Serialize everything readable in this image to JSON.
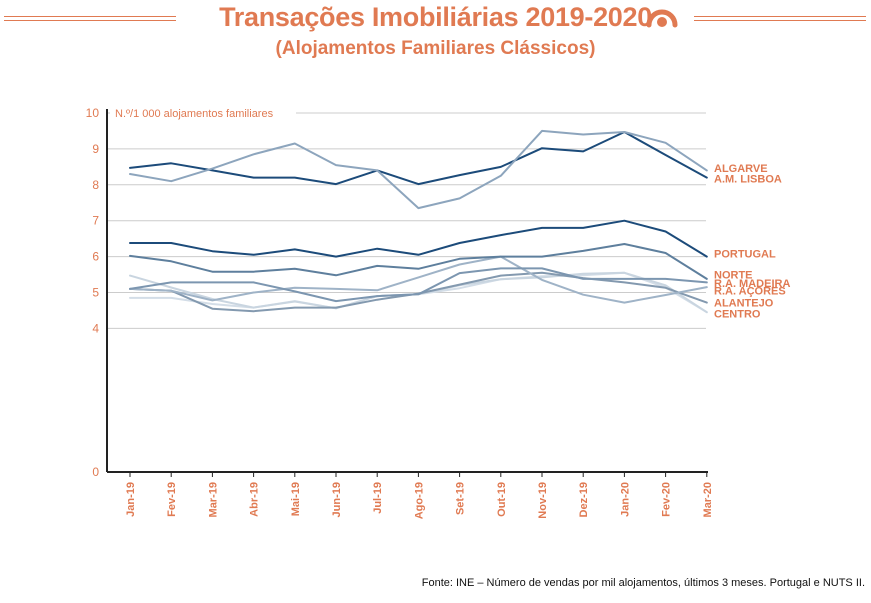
{
  "header": {
    "title": "Transações Imobiliárias 2019-2020",
    "subtitle": "(Alojamentos Familiares Clássicos)",
    "logo_icon": "ine-logo-icon"
  },
  "source_note": "Fonte: INE – Número de vendas por mil alojamentos, últimos 3 meses. Portugal e NUTS II.",
  "colors": {
    "accent": "#e07a52",
    "axis": "#222222",
    "grid": "#cccccc"
  },
  "chart_data": {
    "type": "line",
    "ylabel": "N.º/1 000 alojamentos familiares",
    "ylim": [
      0,
      10
    ],
    "yticks": [
      "0",
      "4",
      "5",
      "6",
      "7",
      "8",
      "9",
      "10"
    ],
    "categories": [
      "Jan-19",
      "Fev-19",
      "Mar-19",
      "Abr-19",
      "Mai-19",
      "Jun-19",
      "Jul-19",
      "Ago-19",
      "Set-19",
      "Out-19",
      "Nov-19",
      "Dez-19",
      "Jan-20",
      "Fev-20",
      "Mar-20"
    ],
    "grid": true,
    "legend": "direct-labels-right",
    "series": [
      {
        "name": "ALGARVE",
        "color": "#8da5bd",
        "width": 2,
        "values": [
          8.3,
          8.1,
          8.45,
          8.85,
          9.15,
          8.55,
          8.4,
          7.35,
          7.62,
          8.25,
          9.5,
          9.4,
          9.47,
          9.17,
          8.4
        ]
      },
      {
        "name": "A.M. LISBOA",
        "color": "#1c4b7a",
        "width": 2,
        "values": [
          8.47,
          8.6,
          8.4,
          8.2,
          8.2,
          8.02,
          8.4,
          8.02,
          8.27,
          8.5,
          9.02,
          8.93,
          9.47,
          8.83,
          8.2
        ]
      },
      {
        "name": "PORTUGAL",
        "color": "#1c4b7a",
        "width": 2,
        "values": [
          6.38,
          6.38,
          6.15,
          6.05,
          6.2,
          6.0,
          6.22,
          6.05,
          6.38,
          6.6,
          6.8,
          6.8,
          7.0,
          6.7,
          6.0
        ]
      },
      {
        "name": "NORTE",
        "color": "#5e7f9d",
        "width": 2,
        "values": [
          6.02,
          5.87,
          5.58,
          5.58,
          5.66,
          5.48,
          5.74,
          5.66,
          5.94,
          6.0,
          6.0,
          6.16,
          6.35,
          6.1,
          5.38
        ]
      },
      {
        "name": "R.A. MADEIRA",
        "color": "#7c96b0",
        "width": 2,
        "values": [
          5.1,
          5.28,
          5.28,
          5.28,
          5.03,
          4.76,
          4.9,
          4.95,
          5.54,
          5.67,
          5.67,
          5.38,
          5.38,
          5.38,
          5.28
        ]
      },
      {
        "name": "R.A. AÇORES",
        "color": "#9fb3c7",
        "width": 2,
        "values": [
          5.1,
          5.05,
          4.78,
          5.0,
          5.13,
          5.1,
          5.06,
          5.42,
          5.78,
          6.0,
          5.35,
          4.94,
          4.72,
          4.93,
          5.15
        ]
      },
      {
        "name": "ALANTEJO",
        "color": "#8399af",
        "width": 2,
        "values": [
          5.1,
          5.05,
          4.55,
          4.48,
          4.58,
          4.58,
          4.8,
          4.97,
          5.22,
          5.47,
          5.55,
          5.4,
          5.28,
          5.13,
          4.72
        ]
      },
      {
        "name": "CENTRO",
        "color": "#c9d5e0",
        "width": 2,
        "values": [
          5.47,
          5.14,
          4.82,
          4.58,
          4.75,
          4.56,
          4.9,
          4.95,
          5.2,
          5.37,
          5.42,
          5.52,
          5.55,
          5.2,
          4.45
        ]
      },
      {
        "name": "",
        "color": "#d3dde7",
        "width": 2,
        "values": [
          4.85,
          4.85,
          4.68,
          4.58,
          4.76,
          4.56,
          4.9,
          4.95,
          5.12,
          5.37,
          5.45,
          5.48,
          5.55,
          5.14,
          4.45
        ]
      }
    ],
    "labels": [
      {
        "text": "ALGARVE",
        "value": 8.47
      },
      {
        "text": "A.M. LISBOA",
        "value": 8.18
      },
      {
        "text": "PORTUGAL",
        "value": 6.08
      },
      {
        "text": "NORTE",
        "value": 5.5
      },
      {
        "text": "R.A. MADEIRA",
        "value": 5.27
      },
      {
        "text": "R.A. AÇORES",
        "value": 5.05
      },
      {
        "text": "ALANTEJO",
        "value": 4.72
      },
      {
        "text": "CENTRO",
        "value": 4.42
      }
    ]
  }
}
